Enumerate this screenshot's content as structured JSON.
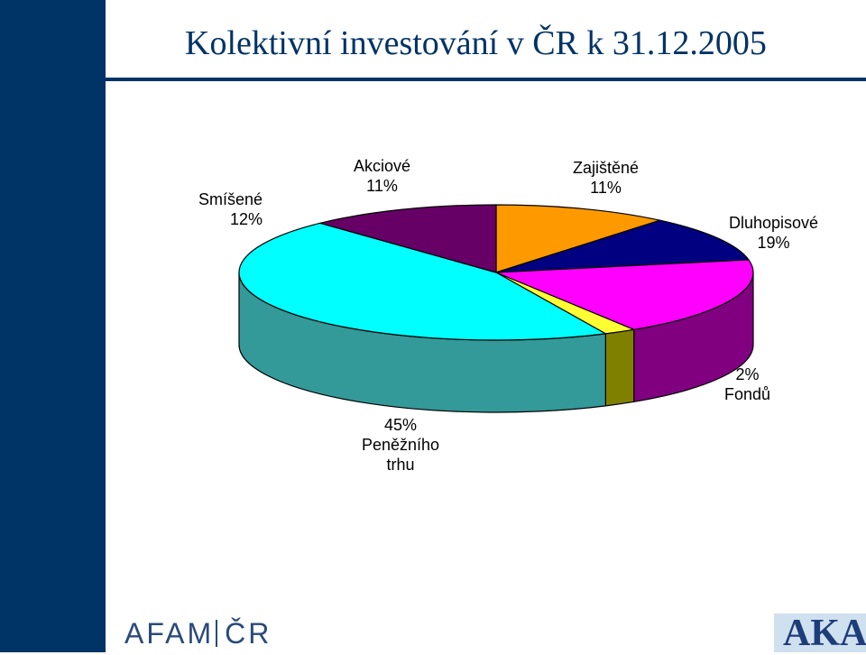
{
  "title": "Kolektivní investování v ČR k 31.12.2005",
  "chart_data": {
    "type": "pie",
    "slices": [
      {
        "name": "Akciové",
        "value": 11,
        "label_pct": "11%",
        "color": "#FF9900",
        "side": "#8c5400"
      },
      {
        "name": "Zajištěné",
        "value": 11,
        "label_pct": "11%",
        "color": "#000080",
        "side": "#000046"
      },
      {
        "name": "Dluhopisové",
        "value": 19,
        "label_pct": "19%",
        "color": "#FF00FF",
        "side": "#800080"
      },
      {
        "name": "Fondů",
        "value": 2,
        "label_pct": "2%",
        "color": "#FFFF33",
        "side": "#808000"
      },
      {
        "name": "Peněžního trhu",
        "name_lines": [
          "Peněžního",
          "trhu"
        ],
        "value": 45,
        "label_pct": "45%",
        "color": "#00FFFF",
        "side": "#339999"
      },
      {
        "name": "Smíšené",
        "value": 12,
        "label_pct": "12%",
        "color": "#660066",
        "side": "#330033"
      }
    ]
  },
  "logos": {
    "afam_left": "AFAM",
    "afam_right": "ČR",
    "aka": "AKA"
  }
}
